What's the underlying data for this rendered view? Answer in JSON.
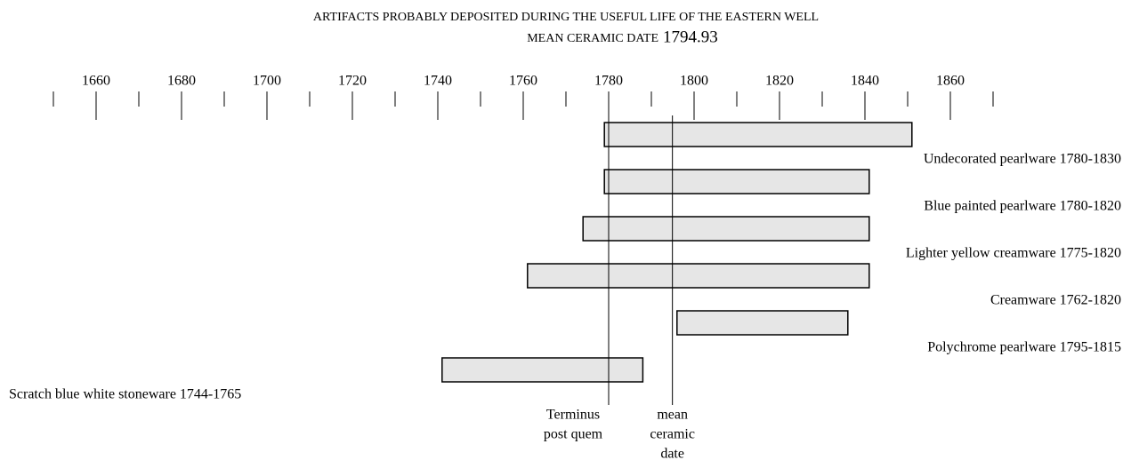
{
  "chart_data": {
    "type": "range",
    "title": "ARTIFACTS PROBABLY DEPOSITED DURING THE USEFUL LIFE OF THE EASTERN WELL",
    "subtitle": "MEAN CERAMIC DATE",
    "mean_date": 1794.93,
    "categories": [
      "Undecorated pearlware  1780-1830",
      "Blue painted pearlware  1780-1820",
      "Lighter yellow creamware 1775-1820",
      "Creamware 1762-1820",
      "Polychrome pearlware 1795-1815",
      "Scratch blue white stoneware  1744-1765"
    ],
    "starts": [
      1779,
      1779,
      1774,
      1761,
      1796,
      1741
    ],
    "ends": [
      1851,
      1841,
      1841,
      1841,
      1836,
      1788
    ],
    "color": "#e6e6e6",
    "xlim": [
      1650,
      1870
    ],
    "xticks": [
      1650,
      1660,
      1670,
      1680,
      1690,
      1700,
      1710,
      1720,
      1730,
      1740,
      1750,
      1760,
      1770,
      1780,
      1790,
      1800,
      1810,
      1820,
      1830,
      1840,
      1850,
      1860,
      1870
    ],
    "xtick_labels": [
      1660,
      1680,
      1700,
      1720,
      1740,
      1760,
      1780,
      1800,
      1820,
      1840,
      1860
    ],
    "terminus": {
      "x": 1780,
      "lines": [
        "Terminus",
        "post quem"
      ]
    },
    "mean_label": [
      "mean",
      "ceramic",
      "date"
    ]
  }
}
